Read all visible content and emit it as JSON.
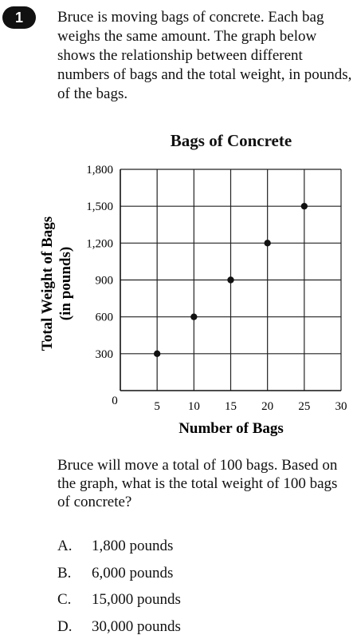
{
  "question": {
    "number": "1",
    "prompt": "Bruce is moving bags of concrete. Each bag weighs the same amount. The graph below shows the relationship between different numbers of bags and the total weight, in pounds, of the bags.",
    "question_text": "Bruce will move a total of 100 bags. Based on the graph, what is the total weight of 100 bags of concrete?",
    "choices": [
      {
        "letter": "A.",
        "text": "1,800 pounds"
      },
      {
        "letter": "B.",
        "text": "6,000 pounds"
      },
      {
        "letter": "C.",
        "text": "15,000 pounds"
      },
      {
        "letter": "D.",
        "text": "30,000 pounds"
      }
    ]
  },
  "chart_data": {
    "type": "scatter",
    "title": "Bags of Concrete",
    "xlabel": "Number of Bags",
    "ylabel_line1": "Total Weight of Bags",
    "ylabel_line2": "(in pounds)",
    "xlim": [
      0,
      30
    ],
    "ylim": [
      0,
      1800
    ],
    "xticks": [
      5,
      10,
      15,
      20,
      25,
      30
    ],
    "xtick_labels": [
      "5",
      "10",
      "15",
      "20",
      "25",
      "30"
    ],
    "yticks": [
      300,
      600,
      900,
      1200,
      1500,
      1800
    ],
    "ytick_labels": [
      "300",
      "600",
      "900",
      "1,200",
      "1,500",
      "1,800"
    ],
    "origin_label": "0",
    "grid": true,
    "points": [
      {
        "x": 5,
        "y": 300
      },
      {
        "x": 10,
        "y": 600
      },
      {
        "x": 15,
        "y": 900
      },
      {
        "x": 20,
        "y": 1200
      },
      {
        "x": 25,
        "y": 1500
      }
    ]
  }
}
